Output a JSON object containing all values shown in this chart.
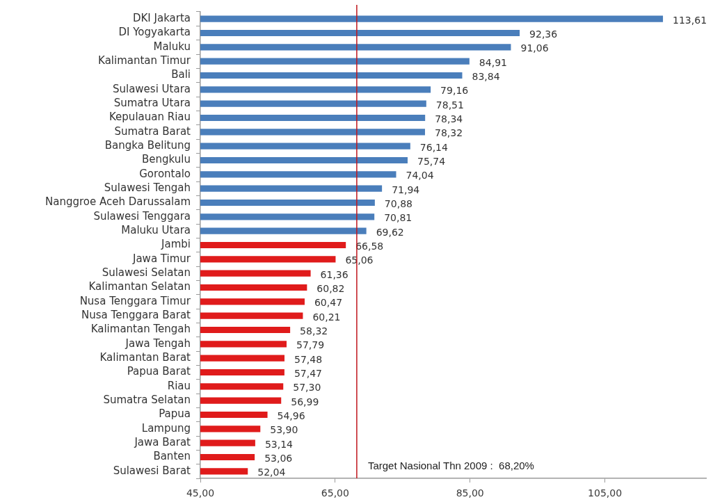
{
  "chart_data": {
    "type": "bar",
    "orientation": "horizontal",
    "categories": [
      "DKI Jakarta",
      "DI Yogyakarta",
      "Maluku",
      "Kalimantan Timur",
      "Bali",
      "Sulawesi Utara",
      "Sumatra Utara",
      "Kepulauan Riau",
      "Sumatra Barat",
      "Bangka Belitung",
      "Bengkulu",
      "Gorontalo",
      "Sulawesi Tengah",
      "Nanggroe Aceh Darussalam",
      "Sulawesi Tenggara",
      "Maluku Utara",
      "Jambi",
      "Jawa Timur",
      "Sulawesi Selatan",
      "Kalimantan Selatan",
      "Nusa Tenggara Timur",
      "Nusa Tenggara Barat",
      "Kalimantan Tengah",
      "Jawa Tengah",
      "Kalimantan Barat",
      "Papua Barat",
      "Riau",
      "Sumatra Selatan",
      "Papua",
      "Lampung",
      "Jawa Barat",
      "Banten",
      "Sulawesi Barat"
    ],
    "values": [
      113.61,
      92.36,
      91.06,
      84.91,
      83.84,
      79.16,
      78.51,
      78.34,
      78.32,
      76.14,
      75.74,
      74.04,
      71.94,
      70.88,
      70.81,
      69.62,
      66.58,
      65.06,
      61.36,
      60.82,
      60.47,
      60.21,
      58.32,
      57.79,
      57.48,
      57.47,
      57.3,
      56.99,
      54.96,
      53.9,
      53.14,
      53.06,
      52.04
    ],
    "value_labels": [
      "113,61",
      "92,36",
      "91,06",
      "84,91",
      "83,84",
      "79,16",
      "78,51",
      "78,34",
      "78,32",
      "76,14",
      "75,74",
      "74,04",
      "71,94",
      "70,88",
      "70,81",
      "69,62",
      "66,58",
      "65,06",
      "61,36",
      "60,82",
      "60,47",
      "60,21",
      "58,32",
      "57,79",
      "57,48",
      "57,47",
      "57,30",
      "56,99",
      "54,96",
      "53,90",
      "53,14",
      "53,06",
      "52,04"
    ],
    "colors": [
      "#4a7ebb",
      "#4a7ebb",
      "#4a7ebb",
      "#4a7ebb",
      "#4a7ebb",
      "#4a7ebb",
      "#4a7ebb",
      "#4a7ebb",
      "#4a7ebb",
      "#4a7ebb",
      "#4a7ebb",
      "#4a7ebb",
      "#4a7ebb",
      "#4a7ebb",
      "#4a7ebb",
      "#4a7ebb",
      "#e01b1b",
      "#e01b1b",
      "#e01b1b",
      "#e01b1b",
      "#e01b1b",
      "#e01b1b",
      "#e01b1b",
      "#e01b1b",
      "#e01b1b",
      "#e01b1b",
      "#e01b1b",
      "#e01b1b",
      "#e01b1b",
      "#e01b1b",
      "#e01b1b",
      "#e01b1b",
      "#e01b1b"
    ],
    "xlim": [
      45,
      120
    ],
    "xticks": [
      {
        "value": 45,
        "label": "45,00"
      },
      {
        "value": 65,
        "label": "65,00"
      },
      {
        "value": 85,
        "label": "85,00"
      },
      {
        "value": 105,
        "label": "105,00"
      }
    ],
    "ref_lines": [
      {
        "axis": "x",
        "value": 68.2,
        "label": "Target Nasional Thn 2009 :  68,20%",
        "color": "#c0151b"
      }
    ]
  }
}
